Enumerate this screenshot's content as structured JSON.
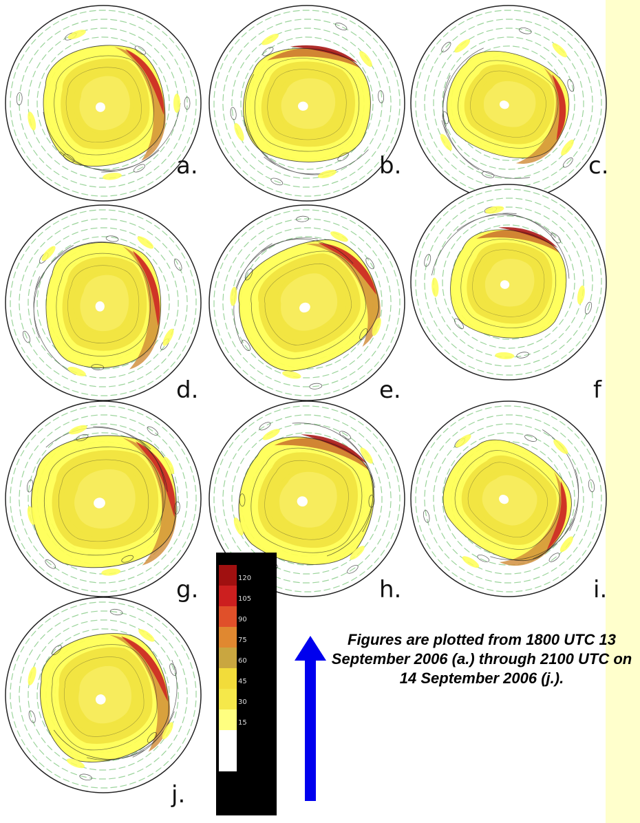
{
  "panels": [
    {
      "label": "a."
    },
    {
      "label": "b."
    },
    {
      "label": "c."
    },
    {
      "label": "d."
    },
    {
      "label": "e."
    },
    {
      "label": "f"
    },
    {
      "label": "g."
    },
    {
      "label": "h."
    },
    {
      "label": "i."
    },
    {
      "label": "j."
    }
  ],
  "colorbar": {
    "ticks": [
      "120",
      "105",
      "90",
      "75",
      "60",
      "45",
      "30",
      "15"
    ],
    "colors": [
      "#ffffff",
      "#ffff80",
      "#f5e84a",
      "#f2dc3a",
      "#c9a640",
      "#e08830",
      "#e0502a",
      "#cc1f1f",
      "#a01010"
    ]
  },
  "caption": {
    "text": "Figures are plotted from 1800 UTC 13 September 2006 (a.) through 2100 UTC on 14 September 2006 (j.)."
  },
  "colors": {
    "background": "#ffffcc",
    "arrow": "#0000ee",
    "vectors": "#9bd49b",
    "contours": "#222222"
  }
}
